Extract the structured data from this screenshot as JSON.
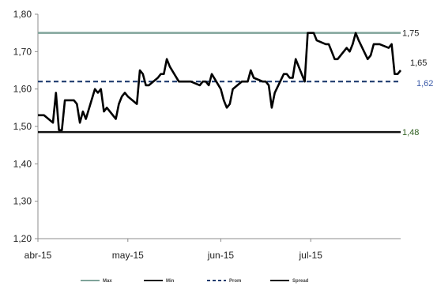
{
  "chart_data": {
    "type": "line",
    "title": "",
    "xlabel": "",
    "ylabel": "",
    "ylim": [
      1.2,
      1.8
    ],
    "y_ticks": [
      "1,20",
      "1,30",
      "1,40",
      "1,50",
      "1,60",
      "1,70",
      "1,80"
    ],
    "y_tick_values": [
      1.2,
      1.3,
      1.4,
      1.5,
      1.6,
      1.7,
      1.8
    ],
    "x_ticks": [
      "abr-15",
      "may-15",
      "jun-15",
      "jul-15"
    ],
    "x_tick_values": [
      "2015-04-01",
      "2015-05-01",
      "2015-06-01",
      "2015-07-01"
    ],
    "x_range": [
      "2015-04-01",
      "2015-07-31"
    ],
    "grid": false,
    "legend_position": "bottom",
    "series": [
      {
        "name": "Max",
        "color": "#7fa39a",
        "style": "solid",
        "constant": 1.75,
        "end_label": "1,75",
        "label_color": "#222222"
      },
      {
        "name": "Min",
        "color": "#111111",
        "style": "solid",
        "constant": 1.485,
        "end_label": "1,48",
        "label_color": "#2e5e1e"
      },
      {
        "name": "Prom",
        "color": "#1f3b6e",
        "style": "dashed",
        "constant": 1.62,
        "end_label": "1,62",
        "label_color": "#3a5aa8"
      },
      {
        "name": "Spread",
        "color": "#000000",
        "style": "solid",
        "end_label": "1,65",
        "label_color": "#222222",
        "x": [
          "2015-04-01",
          "2015-04-03",
          "2015-04-06",
          "2015-04-07",
          "2015-04-08",
          "2015-04-09",
          "2015-04-10",
          "2015-04-13",
          "2015-04-14",
          "2015-04-15",
          "2015-04-16",
          "2015-04-17",
          "2015-04-20",
          "2015-04-21",
          "2015-04-22",
          "2015-04-23",
          "2015-04-24",
          "2015-04-27",
          "2015-04-28",
          "2015-04-29",
          "2015-04-30",
          "2015-05-01",
          "2015-05-04",
          "2015-05-05",
          "2015-05-06",
          "2015-05-07",
          "2015-05-08",
          "2015-05-11",
          "2015-05-12",
          "2015-05-13",
          "2015-05-14",
          "2015-05-15",
          "2015-05-18",
          "2015-05-19",
          "2015-05-20",
          "2015-05-21",
          "2015-05-22",
          "2015-05-25",
          "2015-05-26",
          "2015-05-27",
          "2015-05-28",
          "2015-05-29",
          "2015-06-01",
          "2015-06-02",
          "2015-06-03",
          "2015-06-04",
          "2015-06-05",
          "2015-06-08",
          "2015-06-09",
          "2015-06-10",
          "2015-06-11",
          "2015-06-12",
          "2015-06-15",
          "2015-06-16",
          "2015-06-17",
          "2015-06-18",
          "2015-06-19",
          "2015-06-22",
          "2015-06-23",
          "2015-06-24",
          "2015-06-25",
          "2015-06-26",
          "2015-06-29",
          "2015-06-30",
          "2015-07-01",
          "2015-07-02",
          "2015-07-03",
          "2015-07-06",
          "2015-07-07",
          "2015-07-08",
          "2015-07-09",
          "2015-07-10",
          "2015-07-13",
          "2015-07-14",
          "2015-07-15",
          "2015-07-16",
          "2015-07-17",
          "2015-07-20",
          "2015-07-21",
          "2015-07-22",
          "2015-07-23",
          "2015-07-24",
          "2015-07-27",
          "2015-07-28",
          "2015-07-29",
          "2015-07-30",
          "2015-07-31"
        ],
        "values": [
          1.53,
          1.53,
          1.51,
          1.59,
          1.49,
          1.49,
          1.57,
          1.57,
          1.56,
          1.51,
          1.54,
          1.52,
          1.6,
          1.59,
          1.6,
          1.54,
          1.55,
          1.52,
          1.56,
          1.58,
          1.59,
          1.58,
          1.56,
          1.65,
          1.64,
          1.61,
          1.61,
          1.63,
          1.64,
          1.64,
          1.68,
          1.66,
          1.62,
          1.62,
          1.62,
          1.62,
          1.62,
          1.61,
          1.62,
          1.62,
          1.61,
          1.64,
          1.6,
          1.57,
          1.55,
          1.56,
          1.6,
          1.62,
          1.62,
          1.62,
          1.65,
          1.63,
          1.62,
          1.62,
          1.61,
          1.55,
          1.59,
          1.64,
          1.64,
          1.63,
          1.63,
          1.68,
          1.62,
          1.75,
          1.75,
          1.75,
          1.73,
          1.72,
          1.72,
          1.7,
          1.68,
          1.68,
          1.71,
          1.7,
          1.72,
          1.75,
          1.73,
          1.68,
          1.69,
          1.72,
          1.72,
          1.72,
          1.71,
          1.72,
          1.64,
          1.64,
          1.65
        ]
      }
    ]
  }
}
